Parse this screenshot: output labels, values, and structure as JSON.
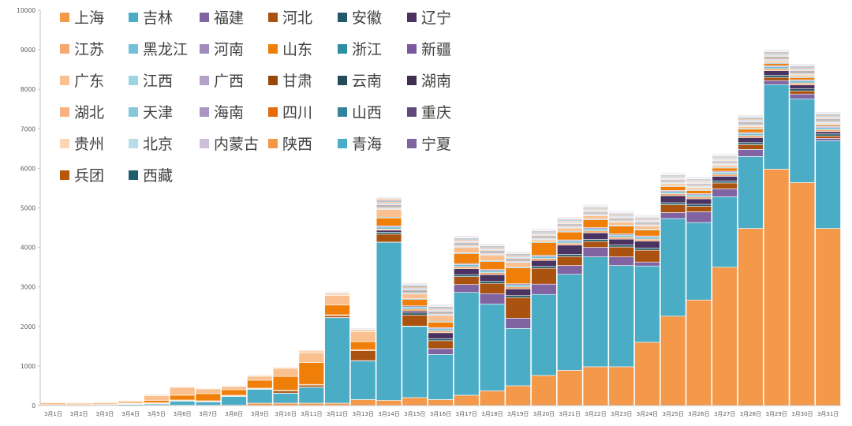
{
  "chart_data": {
    "type": "bar",
    "stacked": true,
    "title": "",
    "xlabel": "",
    "ylabel": "",
    "ylim": [
      0,
      10000
    ],
    "yticks": [
      0,
      1000,
      2000,
      3000,
      4000,
      5000,
      6000,
      7000,
      8000,
      9000,
      10000
    ],
    "legend_position": "top-left",
    "categories": [
      "3月1日",
      "3月2日",
      "3月3日",
      "3月4日",
      "3月5日",
      "3月6日",
      "3月7日",
      "3月8日",
      "3月9日",
      "3月10日",
      "3月11日",
      "3月12日",
      "3月13日",
      "3月14日",
      "3月15日",
      "3月16日",
      "3月17日",
      "3月18日",
      "3月19日",
      "3月20日",
      "3月21日",
      "3月22日",
      "3月23日",
      "3月24日",
      "3月25日",
      "3月26日",
      "3月27日",
      "3月28日",
      "3月29日",
      "3月30日",
      "3月31日"
    ],
    "series": [
      {
        "name": "上海",
        "color": "#F4984A",
        "values": [
          5,
          5,
          5,
          5,
          10,
          10,
          10,
          10,
          60,
          60,
          60,
          60,
          150,
          130,
          200,
          150,
          260,
          370,
          500,
          760,
          890,
          980,
          980,
          1600,
          2260,
          2670,
          3500,
          4480,
          5980,
          5640,
          4480
        ]
      },
      {
        "name": "吉林",
        "color": "#4BACC6",
        "values": [
          0,
          0,
          5,
          20,
          30,
          100,
          80,
          220,
          350,
          250,
          400,
          2160,
          980,
          4000,
          1800,
          1140,
          2600,
          2200,
          1450,
          2050,
          2430,
          2780,
          2560,
          1930,
          2470,
          1960,
          1780,
          1820,
          2140,
          2120,
          2220
        ]
      },
      {
        "name": "福建",
        "color": "#8064A2",
        "values": [
          5,
          5,
          5,
          5,
          5,
          5,
          5,
          5,
          5,
          5,
          5,
          5,
          5,
          5,
          10,
          150,
          200,
          260,
          260,
          260,
          220,
          240,
          220,
          100,
          150,
          270,
          200,
          180,
          100,
          120,
          60
        ]
      },
      {
        "name": "河北",
        "color": "#AA5311",
        "values": [
          5,
          5,
          5,
          5,
          5,
          5,
          5,
          5,
          5,
          50,
          50,
          50,
          250,
          200,
          280,
          200,
          200,
          260,
          520,
          400,
          230,
          150,
          250,
          300,
          200,
          140,
          150,
          120,
          80,
          80,
          60
        ]
      },
      {
        "name": "安徽",
        "color": "#215968",
        "values": [
          0,
          0,
          0,
          0,
          0,
          0,
          0,
          0,
          0,
          0,
          0,
          0,
          0,
          50,
          50,
          50,
          50,
          50,
          50,
          50,
          50,
          50,
          50,
          50,
          50,
          50,
          50,
          50,
          50,
          50,
          50
        ]
      },
      {
        "name": "辽宁",
        "color": "#4A3360",
        "values": [
          0,
          0,
          0,
          0,
          0,
          0,
          0,
          0,
          0,
          0,
          0,
          0,
          0,
          50,
          50,
          150,
          150,
          170,
          170,
          150,
          240,
          170,
          150,
          180,
          180,
          140,
          120,
          130,
          120,
          100,
          60
        ]
      },
      {
        "name": "江苏",
        "color": "#F7A86E",
        "values": [
          5,
          5,
          5,
          10,
          20,
          20,
          20,
          20,
          20,
          20,
          20,
          20,
          30,
          30,
          50,
          50,
          50,
          50,
          50,
          50,
          50,
          50,
          50,
          50,
          50,
          50,
          50,
          50,
          50,
          50,
          50
        ]
      },
      {
        "name": "黑龙江",
        "color": "#71C2D8",
        "values": [
          0,
          0,
          0,
          0,
          0,
          0,
          0,
          0,
          0,
          0,
          0,
          0,
          0,
          50,
          50,
          50,
          50,
          50,
          50,
          50,
          50,
          50,
          50,
          50,
          50,
          50,
          50,
          50,
          50,
          50,
          50
        ]
      },
      {
        "name": "河南",
        "color": "#A08BBB",
        "values": [
          0,
          0,
          0,
          0,
          0,
          0,
          0,
          0,
          0,
          0,
          0,
          0,
          0,
          30,
          30,
          30,
          30,
          30,
          30,
          30,
          30,
          30,
          30,
          30,
          30,
          30,
          30,
          30,
          30,
          30,
          30
        ]
      },
      {
        "name": "山东",
        "color": "#F07F09",
        "values": [
          0,
          0,
          0,
          5,
          60,
          120,
          180,
          140,
          200,
          350,
          550,
          250,
          200,
          200,
          160,
          140,
          250,
          200,
          400,
          320,
          200,
          200,
          200,
          150,
          100,
          80,
          80,
          80,
          50,
          50,
          30
        ]
      },
      {
        "name": "浙江",
        "color": "#2E8FA2",
        "values": [
          0,
          0,
          0,
          0,
          0,
          0,
          0,
          0,
          0,
          0,
          0,
          0,
          0,
          20,
          20,
          20,
          20,
          20,
          20,
          20,
          20,
          20,
          20,
          20,
          20,
          20,
          20,
          20,
          20,
          20,
          20
        ]
      },
      {
        "name": "新疆",
        "color": "#7B58A0",
        "values": [
          0,
          0,
          0,
          0,
          0,
          0,
          0,
          0,
          0,
          0,
          0,
          0,
          0,
          0,
          0,
          0,
          0,
          0,
          0,
          0,
          0,
          0,
          0,
          0,
          0,
          0,
          0,
          0,
          0,
          0,
          0
        ]
      },
      {
        "name": "广东",
        "color": "#FAC090",
        "values": [
          50,
          40,
          40,
          60,
          120,
          200,
          120,
          80,
          100,
          200,
          250,
          240,
          250,
          200,
          120,
          150,
          150,
          150,
          120,
          50,
          80,
          80,
          80,
          80,
          50,
          50,
          50,
          50,
          50,
          50,
          30
        ]
      },
      {
        "name": "江西",
        "color": "#9ED3E3",
        "values": [
          0,
          0,
          0,
          0,
          0,
          0,
          0,
          0,
          0,
          0,
          0,
          0,
          0,
          20,
          20,
          20,
          20,
          20,
          20,
          20,
          20,
          20,
          20,
          20,
          20,
          20,
          20,
          20,
          20,
          20,
          20
        ]
      },
      {
        "name": "广西",
        "color": "#B3A2C7",
        "values": [
          0,
          0,
          0,
          0,
          0,
          0,
          0,
          0,
          0,
          0,
          0,
          0,
          0,
          20,
          20,
          20,
          20,
          20,
          20,
          20,
          20,
          20,
          20,
          20,
          20,
          20,
          20,
          20,
          20,
          20,
          20
        ]
      },
      {
        "name": "甘肃",
        "color": "#984807",
        "values": [
          0,
          0,
          0,
          0,
          0,
          0,
          0,
          0,
          0,
          0,
          0,
          0,
          0,
          20,
          20,
          20,
          20,
          20,
          20,
          20,
          20,
          20,
          20,
          20,
          20,
          20,
          20,
          20,
          20,
          20,
          20
        ]
      },
      {
        "name": "云南",
        "color": "#254B5A",
        "values": [
          0,
          0,
          0,
          0,
          0,
          0,
          0,
          0,
          0,
          0,
          0,
          0,
          0,
          20,
          20,
          20,
          20,
          20,
          20,
          20,
          20,
          20,
          20,
          20,
          20,
          20,
          20,
          20,
          20,
          20,
          20
        ]
      },
      {
        "name": "湖南",
        "color": "#3F2F52",
        "values": [
          0,
          0,
          0,
          0,
          0,
          0,
          0,
          0,
          0,
          0,
          0,
          0,
          0,
          20,
          20,
          20,
          20,
          20,
          20,
          20,
          20,
          20,
          20,
          20,
          20,
          20,
          20,
          20,
          20,
          20,
          20
        ]
      },
      {
        "name": "湖北",
        "color": "#F9B27E",
        "values": [
          0,
          0,
          0,
          0,
          0,
          0,
          0,
          0,
          0,
          0,
          0,
          0,
          0,
          20,
          20,
          20,
          20,
          20,
          20,
          20,
          20,
          20,
          20,
          20,
          20,
          20,
          20,
          20,
          20,
          20,
          20
        ]
      },
      {
        "name": "天津",
        "color": "#86C8DA",
        "values": [
          0,
          0,
          0,
          0,
          0,
          0,
          0,
          0,
          0,
          0,
          0,
          0,
          0,
          20,
          20,
          20,
          20,
          20,
          20,
          20,
          20,
          20,
          20,
          20,
          20,
          20,
          20,
          20,
          20,
          20,
          20
        ]
      },
      {
        "name": "海南",
        "color": "#A996C5",
        "values": [
          0,
          0,
          0,
          0,
          0,
          0,
          0,
          0,
          0,
          0,
          0,
          0,
          0,
          20,
          20,
          20,
          20,
          20,
          20,
          20,
          20,
          20,
          20,
          20,
          20,
          20,
          20,
          20,
          20,
          20,
          20
        ]
      },
      {
        "name": "四川",
        "color": "#E46C0A",
        "values": [
          0,
          0,
          0,
          0,
          0,
          0,
          0,
          0,
          0,
          0,
          0,
          0,
          0,
          20,
          20,
          20,
          20,
          20,
          20,
          20,
          20,
          20,
          20,
          20,
          20,
          20,
          20,
          20,
          20,
          20,
          20
        ]
      },
      {
        "name": "山西",
        "color": "#31849B",
        "values": [
          0,
          0,
          0,
          0,
          0,
          0,
          0,
          0,
          0,
          0,
          0,
          0,
          0,
          20,
          20,
          20,
          20,
          20,
          20,
          20,
          20,
          20,
          20,
          20,
          20,
          20,
          20,
          20,
          20,
          20,
          20
        ]
      },
      {
        "name": "重庆",
        "color": "#604A7B",
        "values": [
          0,
          0,
          0,
          0,
          0,
          0,
          0,
          0,
          0,
          0,
          0,
          0,
          0,
          20,
          20,
          20,
          20,
          20,
          20,
          20,
          20,
          20,
          20,
          20,
          20,
          20,
          20,
          20,
          20,
          20,
          20
        ]
      },
      {
        "name": "贵州",
        "color": "#FCD5B5",
        "values": [
          20,
          20,
          20,
          20,
          30,
          20,
          20,
          20,
          30,
          30,
          60,
          60,
          60,
          50,
          20,
          20,
          20,
          20,
          20,
          20,
          20,
          20,
          20,
          20,
          20,
          20,
          20,
          20,
          20,
          20,
          20
        ]
      },
      {
        "name": "北京",
        "color": "#B7DEE8",
        "values": [
          10,
          10,
          10,
          10,
          10,
          10,
          10,
          10,
          10,
          10,
          10,
          20,
          20,
          20,
          20,
          20,
          20,
          20,
          20,
          20,
          20,
          20,
          20,
          20,
          20,
          20,
          20,
          20,
          20,
          20,
          20
        ]
      },
      {
        "name": "内蒙古",
        "color": "#CCC0DA",
        "values": [
          0,
          0,
          0,
          0,
          0,
          0,
          0,
          0,
          0,
          10,
          10,
          20,
          20,
          20,
          20,
          20,
          20,
          20,
          20,
          20,
          20,
          20,
          20,
          20,
          20,
          20,
          20,
          20,
          20,
          20,
          20
        ]
      },
      {
        "name": "陕西",
        "color": "#F79646",
        "values": [
          5,
          5,
          5,
          5,
          5,
          5,
          5,
          5,
          5,
          10,
          10,
          10,
          10,
          10,
          10,
          10,
          10,
          10,
          10,
          10,
          10,
          10,
          10,
          10,
          10,
          10,
          10,
          10,
          10,
          10,
          10
        ]
      },
      {
        "name": "青海",
        "color": "#4BACC6",
        "values": [
          0,
          0,
          0,
          0,
          0,
          0,
          0,
          0,
          0,
          0,
          0,
          0,
          0,
          0,
          0,
          0,
          0,
          0,
          0,
          0,
          0,
          0,
          0,
          0,
          0,
          0,
          0,
          0,
          0,
          0,
          0
        ]
      },
      {
        "name": "宁夏",
        "color": "#8064A2",
        "values": [
          0,
          0,
          0,
          0,
          0,
          0,
          0,
          0,
          0,
          0,
          0,
          0,
          0,
          0,
          0,
          0,
          0,
          0,
          0,
          0,
          0,
          0,
          0,
          0,
          0,
          0,
          0,
          0,
          0,
          0,
          0
        ]
      },
      {
        "name": "兵团",
        "color": "#B65708",
        "values": [
          0,
          0,
          0,
          0,
          0,
          0,
          0,
          0,
          0,
          0,
          0,
          0,
          0,
          0,
          0,
          0,
          0,
          0,
          0,
          0,
          0,
          0,
          0,
          0,
          0,
          0,
          0,
          0,
          0,
          0,
          0
        ]
      },
      {
        "name": "西藏",
        "color": "#1F5C6C",
        "values": [
          0,
          0,
          0,
          0,
          0,
          0,
          0,
          0,
          0,
          0,
          0,
          0,
          0,
          0,
          0,
          0,
          0,
          0,
          0,
          0,
          0,
          0,
          0,
          0,
          0,
          0,
          0,
          0,
          0,
          0,
          0
        ]
      }
    ]
  }
}
